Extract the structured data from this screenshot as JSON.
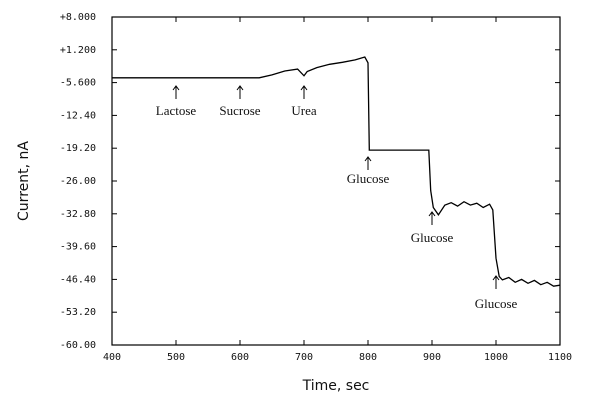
{
  "chart_data": {
    "type": "line",
    "xlabel": "Time, sec",
    "ylabel": "Current, nA",
    "xlim": [
      400,
      1100
    ],
    "xticks": [
      400,
      500,
      600,
      700,
      800,
      900,
      1000,
      1100
    ],
    "ylim": [
      -60,
      8
    ],
    "yticks": [
      {
        "value": 8,
        "label": "+8.000"
      },
      {
        "value": 1.2,
        "label": "+1.200"
      },
      {
        "value": -5.6,
        "label": "-5.600"
      },
      {
        "value": -12.4,
        "label": "-12.40"
      },
      {
        "value": -19.2,
        "label": "-19.20"
      },
      {
        "value": -26,
        "label": "-26.00"
      },
      {
        "value": -32.8,
        "label": "-32.80"
      },
      {
        "value": -39.6,
        "label": "-39.60"
      },
      {
        "value": -46.4,
        "label": "-46.40"
      },
      {
        "value": -53.2,
        "label": "-53.20"
      },
      {
        "value": -60,
        "label": "-60.00"
      }
    ],
    "x": [
      400,
      450,
      500,
      550,
      600,
      630,
      650,
      670,
      690,
      700,
      705,
      720,
      740,
      760,
      780,
      795,
      800,
      802,
      810,
      850,
      895,
      898,
      902,
      910,
      920,
      930,
      940,
      950,
      960,
      970,
      980,
      990,
      995,
      1000,
      1005,
      1010,
      1020,
      1030,
      1040,
      1050,
      1060,
      1070,
      1080,
      1090,
      1100
    ],
    "series": [
      {
        "color": "#000000",
        "values": [
          -4.6,
          -4.6,
          -4.6,
          -4.6,
          -4.6,
          -4.6,
          -4.0,
          -3.2,
          -2.8,
          -4.2,
          -3.3,
          -2.5,
          -1.8,
          -1.4,
          -0.9,
          -0.3,
          -1.5,
          -19.6,
          -19.6,
          -19.6,
          -19.6,
          -28,
          -31.5,
          -33,
          -31,
          -30.5,
          -31.2,
          -30.3,
          -31,
          -30.6,
          -31.5,
          -30.8,
          -32,
          -42,
          -45.8,
          -46.5,
          -46,
          -47,
          -46.4,
          -47.2,
          -46.6,
          -47.5,
          -47,
          -47.8,
          -47.6
        ]
      }
    ],
    "annotations": [
      "Lactose",
      "Sucrose",
      "Urea",
      "Glucose",
      "Glucose",
      "Glucose"
    ]
  }
}
